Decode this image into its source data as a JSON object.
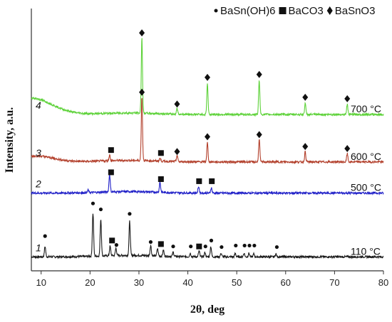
{
  "chart_data": {
    "type": "line",
    "xlabel": "2θ, deg",
    "ylabel": "Intensity, a.u.",
    "xlim": [
      8,
      80
    ],
    "x_ticks": [
      "10",
      "20",
      "30",
      "40",
      "50",
      "60",
      "70",
      "80"
    ],
    "legend": {
      "placement": "top-right",
      "entries": [
        {
          "marker": "dot",
          "label": "BaSn(OH)6"
        },
        {
          "marker": "square",
          "label": "BaCO3"
        },
        {
          "marker": "diamond",
          "label": "BaSnO3"
        }
      ]
    },
    "series": [
      {
        "label_number": "1",
        "temperature": "110 °C",
        "color": "#1a1a1a",
        "baseline": 0.0,
        "peaks": [
          {
            "x": 10.8,
            "h": 0.35
          },
          {
            "x": 20.6,
            "h": 1.45
          },
          {
            "x": 22.2,
            "h": 1.25
          },
          {
            "x": 24.1,
            "h": 0.32
          },
          {
            "x": 25.3,
            "h": 0.25
          },
          {
            "x": 28.1,
            "h": 1.15
          },
          {
            "x": 32.4,
            "h": 0.35
          },
          {
            "x": 33.8,
            "h": 0.25
          },
          {
            "x": 35.0,
            "h": 0.2
          },
          {
            "x": 37.0,
            "h": 0.15
          },
          {
            "x": 40.5,
            "h": 0.12
          },
          {
            "x": 42.3,
            "h": 0.2
          },
          {
            "x": 43.5,
            "h": 0.15
          },
          {
            "x": 44.7,
            "h": 0.35
          },
          {
            "x": 46.8,
            "h": 0.12
          },
          {
            "x": 49.7,
            "h": 0.12
          },
          {
            "x": 51.5,
            "h": 0.12
          },
          {
            "x": 52.5,
            "h": 0.12
          },
          {
            "x": 53.5,
            "h": 0.1
          },
          {
            "x": 58.0,
            "h": 0.1
          }
        ],
        "markers": [
          {
            "x": 10.8,
            "y": 0.7,
            "m": "dot"
          },
          {
            "x": 20.6,
            "y": 1.8,
            "m": "dot"
          },
          {
            "x": 22.2,
            "y": 1.6,
            "m": "dot"
          },
          {
            "x": 24.5,
            "y": 0.55,
            "m": "square"
          },
          {
            "x": 25.4,
            "y": 0.4,
            "m": "dot"
          },
          {
            "x": 28.1,
            "y": 1.45,
            "m": "dot"
          },
          {
            "x": 32.4,
            "y": 0.5,
            "m": "dot"
          },
          {
            "x": 34.5,
            "y": 0.43,
            "m": "square"
          },
          {
            "x": 37.0,
            "y": 0.35,
            "m": "dot"
          },
          {
            "x": 40.6,
            "y": 0.35,
            "m": "dot"
          },
          {
            "x": 42.3,
            "y": 0.35,
            "m": "square"
          },
          {
            "x": 43.6,
            "y": 0.35,
            "m": "dot"
          },
          {
            "x": 44.8,
            "y": 0.55,
            "m": "dot"
          },
          {
            "x": 46.9,
            "y": 0.33,
            "m": "dot"
          },
          {
            "x": 49.8,
            "y": 0.38,
            "m": "dot"
          },
          {
            "x": 51.6,
            "y": 0.38,
            "m": "dot"
          },
          {
            "x": 52.6,
            "y": 0.38,
            "m": "dot"
          },
          {
            "x": 53.6,
            "y": 0.38,
            "m": "dot"
          },
          {
            "x": 58.2,
            "y": 0.33,
            "m": "dot"
          }
        ]
      },
      {
        "label_number": "2",
        "temperature": "500 °C",
        "color": "#2121c8",
        "baseline": 2.15,
        "peaks": [
          {
            "x": 24.0,
            "h": 0.6
          },
          {
            "x": 34.3,
            "h": 0.35
          },
          {
            "x": 42.2,
            "h": 0.22
          },
          {
            "x": 44.8,
            "h": 0.18
          },
          {
            "x": 19.6,
            "h": 0.08
          }
        ],
        "markers": [
          {
            "x": 24.3,
            "y": 2.85,
            "m": "square"
          },
          {
            "x": 34.5,
            "y": 2.62,
            "m": "square"
          },
          {
            "x": 42.3,
            "y": 2.55,
            "m": "square"
          },
          {
            "x": 44.9,
            "y": 2.55,
            "m": "square"
          }
        ]
      },
      {
        "label_number": "3",
        "temperature": "600 °C",
        "color": "#b3412d",
        "baseline": 3.2,
        "peaks": [
          {
            "x": 24.0,
            "h": 0.2
          },
          {
            "x": 30.6,
            "h": 2.15
          },
          {
            "x": 34.3,
            "h": 0.1
          },
          {
            "x": 37.8,
            "h": 0.22
          },
          {
            "x": 44.0,
            "h": 0.65
          },
          {
            "x": 54.6,
            "h": 0.75
          },
          {
            "x": 64.0,
            "h": 0.35
          },
          {
            "x": 72.6,
            "h": 0.28
          }
        ],
        "markers": [
          {
            "x": 24.3,
            "y": 3.6,
            "m": "square"
          },
          {
            "x": 30.6,
            "y": 5.55,
            "m": "diamond"
          },
          {
            "x": 34.5,
            "y": 3.5,
            "m": "square"
          },
          {
            "x": 37.8,
            "y": 3.55,
            "m": "diamond"
          },
          {
            "x": 44.0,
            "y": 4.05,
            "m": "diamond"
          },
          {
            "x": 54.6,
            "y": 4.12,
            "m": "diamond"
          },
          {
            "x": 64.0,
            "y": 3.72,
            "m": "diamond"
          },
          {
            "x": 72.6,
            "y": 3.65,
            "m": "diamond"
          }
        ]
      },
      {
        "label_number": "4",
        "temperature": "700 °C",
        "color": "#5ed23a",
        "baseline": 4.8,
        "peaks": [
          {
            "x": 30.6,
            "h": 2.55
          },
          {
            "x": 37.8,
            "h": 0.2
          },
          {
            "x": 44.0,
            "h": 1.05
          },
          {
            "x": 54.6,
            "h": 1.15
          },
          {
            "x": 64.0,
            "h": 0.38
          },
          {
            "x": 72.6,
            "h": 0.34
          }
        ],
        "markers": [
          {
            "x": 30.6,
            "y": 7.55,
            "m": "diamond"
          },
          {
            "x": 37.8,
            "y": 5.15,
            "m": "diamond"
          },
          {
            "x": 44.0,
            "y": 6.05,
            "m": "diamond"
          },
          {
            "x": 54.6,
            "y": 6.15,
            "m": "diamond"
          },
          {
            "x": 64.0,
            "y": 5.38,
            "m": "diamond"
          },
          {
            "x": 72.6,
            "y": 5.33,
            "m": "diamond"
          }
        ]
      }
    ]
  }
}
